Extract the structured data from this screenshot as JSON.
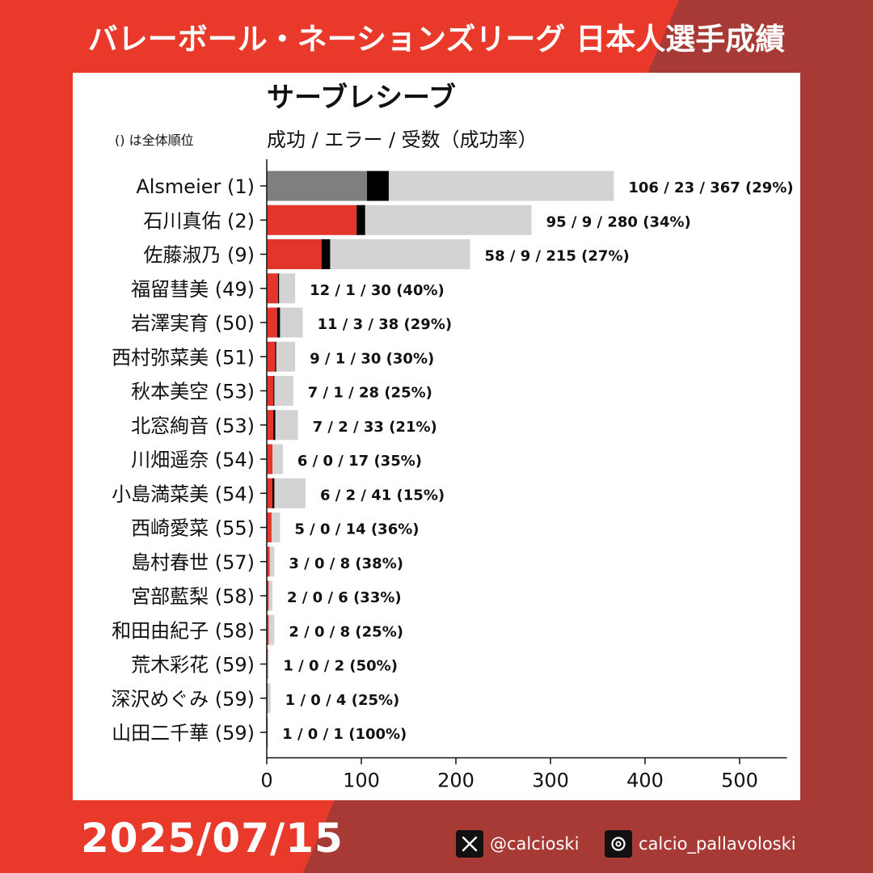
{
  "header": {
    "title": "バレーボール・ネーションズリーグ 日本人選手成績"
  },
  "footer": {
    "date": "2025/07/15",
    "x_handle": "@calcioski",
    "threads_handle": "calcio_pallavoloski"
  },
  "colors": {
    "banner_left": "#e8392a",
    "banner_right": "#a83a36",
    "success_highlight": "#7f7f7f",
    "success": "#e3352b",
    "error": "#000000",
    "attempts": "#d3d3d3"
  },
  "icons": {
    "x": "x-logo-icon",
    "threads": "threads-logo-icon"
  },
  "chart_data": {
    "type": "bar",
    "orientation": "horizontal",
    "title": "サーブレシーブ",
    "subtitle": "成功 / エラー / 受数（成功率）",
    "rank_note": "() は全体順位",
    "xlim": [
      0,
      550
    ],
    "xticks": [
      0,
      100,
      200,
      300,
      400,
      500
    ],
    "grid": false,
    "legend": "none",
    "categories": [
      "Alsmeier (1)",
      "石川真佑 (2)",
      "佐藤淑乃 (9)",
      "福留彗美 (49)",
      "岩澤実育 (50)",
      "西村弥菜美 (51)",
      "秋本美空 (53)",
      "北窓絢音 (53)",
      "川畑遥奈 (54)",
      "小島満菜美 (54)",
      "西崎愛菜 (55)",
      "島村春世 (57)",
      "宮部藍梨 (58)",
      "和田由紀子 (58)",
      "荒木彩花 (59)",
      "深沢めぐみ (59)",
      "山田二千華 (59)"
    ],
    "series": [
      {
        "name": "成功",
        "values": [
          106,
          95,
          58,
          12,
          11,
          9,
          7,
          7,
          6,
          6,
          5,
          3,
          2,
          2,
          1,
          1,
          1
        ]
      },
      {
        "name": "エラー",
        "values": [
          23,
          9,
          9,
          1,
          3,
          1,
          1,
          2,
          0,
          2,
          0,
          0,
          0,
          0,
          0,
          0,
          0
        ]
      },
      {
        "name": "受数",
        "values": [
          367,
          280,
          215,
          30,
          38,
          30,
          28,
          33,
          17,
          41,
          14,
          8,
          6,
          8,
          2,
          4,
          1
        ]
      }
    ],
    "data_labels": [
      "106 / 23 / 367 (29%)",
      "95 / 9 / 280 (34%)",
      "58 / 9 / 215 (27%)",
      "12 / 1 / 30 (40%)",
      "11 / 3 / 38 (29%)",
      "9 / 1 / 30 (30%)",
      "7 / 1 / 28 (25%)",
      "7 / 2 / 33 (21%)",
      "6 / 0 / 17 (35%)",
      "6 / 2 / 41 (15%)",
      "5 / 0 / 14 (36%)",
      "3 / 0 / 8 (38%)",
      "2 / 0 / 6 (33%)",
      "2 / 0 / 8 (25%)",
      "1 / 0 / 2 (50%)",
      "1 / 0 / 4 (25%)",
      "1 / 0 / 1 (100%)"
    ],
    "highlight_index": 0
  }
}
